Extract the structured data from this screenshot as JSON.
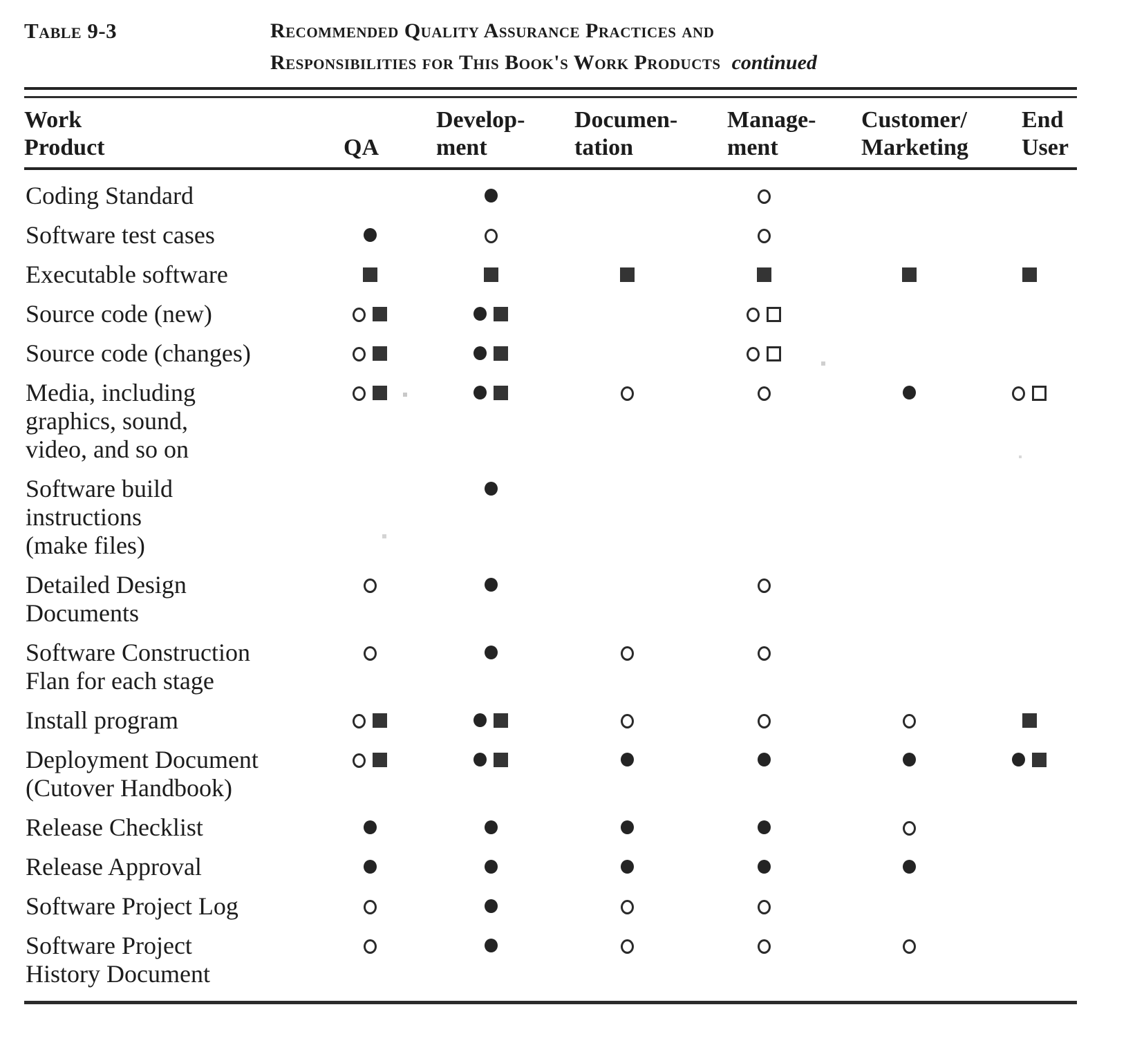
{
  "caption": {
    "label": "Table 9-3",
    "title_line1": "Recommended Quality Assurance Practices and",
    "title_line2": "Responsibilities for This Book's Work Products",
    "continued": "continued"
  },
  "colors": {
    "ink": "#242424",
    "paper": "#ffffff"
  },
  "icons": {
    "filled_circle": "●",
    "open_circle": "○",
    "filled_square": "■",
    "open_square": "□"
  },
  "columns": [
    {
      "id": "work-product",
      "line1": "Work",
      "line2": "Product"
    },
    {
      "id": "qa",
      "line1": "",
      "line2": "QA"
    },
    {
      "id": "development",
      "line1": "Develop-",
      "line2": "ment"
    },
    {
      "id": "documentation",
      "line1": "Documen-",
      "line2": "tation"
    },
    {
      "id": "management",
      "line1": "Manage-",
      "line2": "ment"
    },
    {
      "id": "customer-marketing",
      "line1": "Customer/",
      "line2": "Marketing"
    },
    {
      "id": "end-user",
      "line1": "End",
      "line2": "User"
    }
  ],
  "rows": [
    {
      "label_lines": [
        "Coding Standard"
      ],
      "cells": [
        [],
        [
          "filled_circle"
        ],
        [],
        [
          "open_circle"
        ],
        [],
        []
      ]
    },
    {
      "label_lines": [
        "Software test cases"
      ],
      "cells": [
        [
          "filled_circle"
        ],
        [
          "open_circle"
        ],
        [],
        [
          "open_circle"
        ],
        [],
        []
      ]
    },
    {
      "label_lines": [
        "Executable software"
      ],
      "cells": [
        [
          "filled_square"
        ],
        [
          "filled_square"
        ],
        [
          "filled_square"
        ],
        [
          "filled_square"
        ],
        [
          "filled_square"
        ],
        [
          "filled_square"
        ]
      ]
    },
    {
      "label_lines": [
        "Source code (new)"
      ],
      "cells": [
        [
          "open_circle",
          "filled_square"
        ],
        [
          "filled_circle",
          "filled_square"
        ],
        [],
        [
          "open_circle",
          "open_square"
        ],
        [],
        []
      ]
    },
    {
      "label_lines": [
        "Source code (changes)"
      ],
      "cells": [
        [
          "open_circle",
          "filled_square"
        ],
        [
          "filled_circle",
          "filled_square"
        ],
        [],
        [
          "open_circle",
          "open_square"
        ],
        [],
        []
      ]
    },
    {
      "label_lines": [
        "Media, including",
        "graphics, sound,",
        "video, and so on"
      ],
      "cells": [
        [
          "open_circle",
          "filled_square"
        ],
        [
          "filled_circle",
          "filled_square"
        ],
        [
          "open_circle"
        ],
        [
          "open_circle"
        ],
        [
          "filled_circle"
        ],
        [
          "open_circle",
          "open_square"
        ]
      ]
    },
    {
      "label_lines": [
        "Software build",
        "instructions",
        "(make files)"
      ],
      "cells": [
        [],
        [
          "filled_circle"
        ],
        [],
        [],
        [],
        []
      ]
    },
    {
      "label_lines": [
        "Detailed Design",
        "Documents"
      ],
      "cells": [
        [
          "open_circle"
        ],
        [
          "filled_circle"
        ],
        [],
        [
          "open_circle"
        ],
        [],
        []
      ]
    },
    {
      "label_lines": [
        "Software  Construction",
        "Flan for each stage"
      ],
      "cells": [
        [
          "open_circle"
        ],
        [
          "filled_circle"
        ],
        [
          "open_circle"
        ],
        [
          "open_circle"
        ],
        [],
        []
      ]
    },
    {
      "label_lines": [
        "Install program"
      ],
      "cells": [
        [
          "open_circle",
          "filled_square"
        ],
        [
          "filled_circle",
          "filled_square"
        ],
        [
          "open_circle"
        ],
        [
          "open_circle"
        ],
        [
          "open_circle"
        ],
        [
          "filled_square"
        ]
      ]
    },
    {
      "label_lines": [
        "Deployment Document",
        "(Cutover  Handbook)"
      ],
      "cells": [
        [
          "open_circle",
          "filled_square"
        ],
        [
          "filled_circle",
          "filled_square"
        ],
        [
          "filled_circle"
        ],
        [
          "filled_circle"
        ],
        [
          "filled_circle"
        ],
        [
          "filled_circle",
          "filled_square"
        ]
      ]
    },
    {
      "label_lines": [
        "Release  Checklist"
      ],
      "cells": [
        [
          "filled_circle"
        ],
        [
          "filled_circle"
        ],
        [
          "filled_circle"
        ],
        [
          "filled_circle"
        ],
        [
          "open_circle"
        ],
        []
      ]
    },
    {
      "label_lines": [
        "Release  Approval"
      ],
      "cells": [
        [
          "filled_circle"
        ],
        [
          "filled_circle"
        ],
        [
          "filled_circle"
        ],
        [
          "filled_circle"
        ],
        [
          "filled_circle"
        ],
        []
      ]
    },
    {
      "label_lines": [
        "Software Project Log"
      ],
      "cells": [
        [
          "open_circle"
        ],
        [
          "filled_circle"
        ],
        [
          "open_circle"
        ],
        [
          "open_circle"
        ],
        [],
        []
      ]
    },
    {
      "label_lines": [
        "Software Project",
        "History Document"
      ],
      "cells": [
        [
          "open_circle"
        ],
        [
          "filled_circle"
        ],
        [
          "open_circle"
        ],
        [
          "open_circle"
        ],
        [
          "open_circle"
        ],
        []
      ]
    }
  ]
}
